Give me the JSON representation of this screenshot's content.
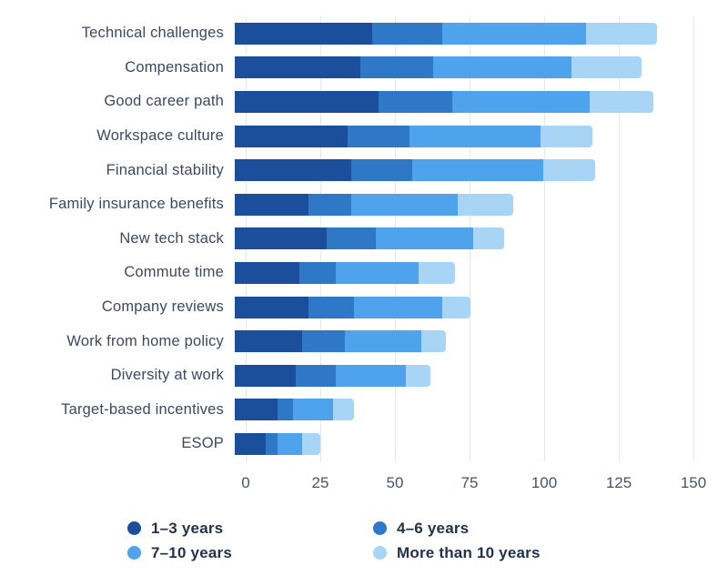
{
  "chart_data": {
    "type": "bar",
    "orientation": "horizontal",
    "stacked": true,
    "title": "",
    "xlabel": "",
    "ylabel": "",
    "grid": true,
    "legend_position": "bottom",
    "xlim": [
      0,
      150
    ],
    "xticks": [
      "0",
      "25",
      "50",
      "75",
      "100",
      "125",
      "150"
    ],
    "xtick_values": [
      0,
      25,
      50,
      75,
      100,
      125,
      150
    ],
    "categories": [
      "Technical challenges",
      "Compensation",
      "Good career path",
      "Workspace culture",
      "Financial stability",
      "Family insurance benefits",
      "New tech stack",
      "Commute time",
      "Company reviews",
      "Work from home policy",
      "Diversity at work",
      "Target-based incentives",
      "ESOP"
    ],
    "series": [
      {
        "name": "1–3 years",
        "color": "#1b4e9b",
        "values": [
          45,
          41,
          47,
          37,
          38,
          24,
          30,
          21,
          24,
          22,
          20,
          14,
          10
        ]
      },
      {
        "name": "4–6 years",
        "color": "#2e78c7",
        "values": [
          23,
          24,
          24,
          20,
          20,
          14,
          16,
          12,
          15,
          14,
          13,
          5,
          4
        ]
      },
      {
        "name": "7–10 years",
        "color": "#4fa3ec",
        "values": [
          47,
          45,
          45,
          43,
          43,
          35,
          32,
          27,
          29,
          25,
          23,
          13,
          8
        ]
      },
      {
        "name": "More than 10 years",
        "color": "#a8d4f5",
        "values": [
          23,
          23,
          21,
          17,
          17,
          18,
          10,
          12,
          9,
          8,
          8,
          7,
          6
        ]
      }
    ]
  }
}
